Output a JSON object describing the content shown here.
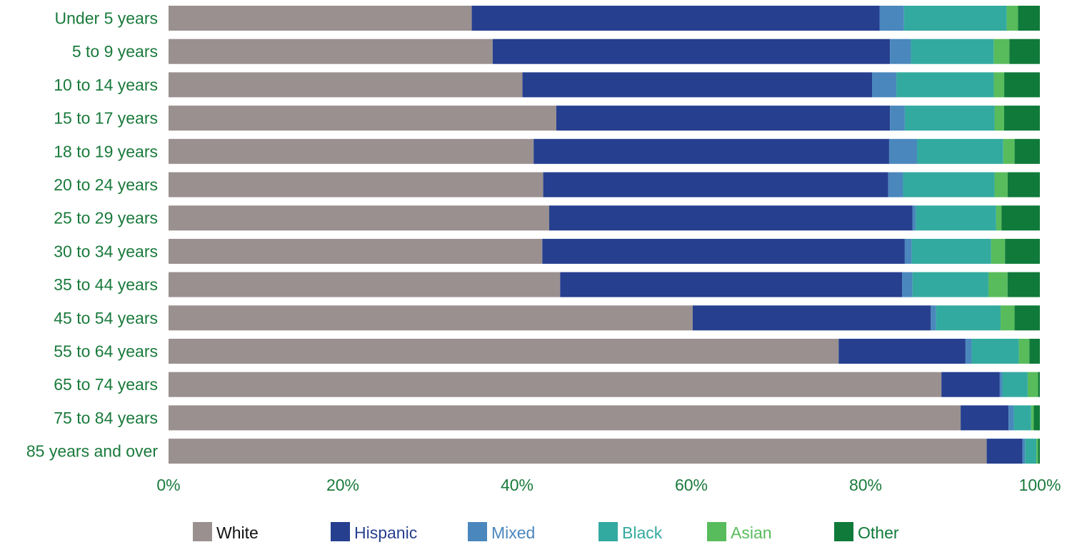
{
  "chart_data": {
    "type": "bar",
    "orientation": "horizontal",
    "stacked": "percent",
    "categories": [
      "Under 5 years",
      "5 to 9 years",
      "10 to 14 years",
      "15 to 17 years",
      "18 to 19 years",
      "20 to 24 years",
      "25 to 29 years",
      "30 to 34 years",
      "35 to 44 years",
      "45 to 54 years",
      "55 to 64 years",
      "65 to 74 years",
      "75 to 84 years",
      "85 years and over"
    ],
    "series": [
      {
        "name": "White",
        "color": "#9a9090",
        "values": [
          34.8,
          37.2,
          40.7,
          44.5,
          41.9,
          43.0,
          43.6,
          42.9,
          44.9,
          60.1,
          76.6,
          88.7,
          91.0,
          93.9
        ]
      },
      {
        "name": "Hispanic",
        "color": "#263f8f",
        "values": [
          46.8,
          45.6,
          40.2,
          38.3,
          40.8,
          39.6,
          41.6,
          41.6,
          39.2,
          27.3,
          14.5,
          6.7,
          5.5,
          4.1
        ]
      },
      {
        "name": "Mixed",
        "color": "#4a87bd",
        "values": [
          2.8,
          2.4,
          2.8,
          1.7,
          3.2,
          1.7,
          0.4,
          0.8,
          1.2,
          0.6,
          0.7,
          0.3,
          0.6,
          0.3
        ]
      },
      {
        "name": "Black",
        "color": "#33aaa0",
        "values": [
          11.8,
          9.5,
          11.2,
          10.3,
          9.9,
          10.5,
          9.2,
          9.1,
          8.7,
          7.4,
          5.4,
          2.9,
          2.0,
          1.3
        ]
      },
      {
        "name": "Asian",
        "color": "#58bc5c",
        "values": [
          1.3,
          1.8,
          1.2,
          1.1,
          1.3,
          1.5,
          0.6,
          1.6,
          2.2,
          1.6,
          1.2,
          1.2,
          0.3,
          0.2
        ]
      },
      {
        "name": "Other",
        "color": "#0f7a3a",
        "values": [
          2.5,
          3.5,
          4.1,
          4.1,
          2.9,
          3.7,
          4.4,
          4.0,
          3.7,
          2.9,
          1.2,
          0.2,
          0.7,
          0.2
        ]
      }
    ],
    "xlim": [
      0,
      100
    ],
    "x_ticks": [
      "0%",
      "20%",
      "40%",
      "60%",
      "80%",
      "100%"
    ],
    "title": "",
    "xlabel": "",
    "ylabel": "",
    "grid": false,
    "legend_position": "bottom",
    "label_color": "#1a7a3c"
  }
}
